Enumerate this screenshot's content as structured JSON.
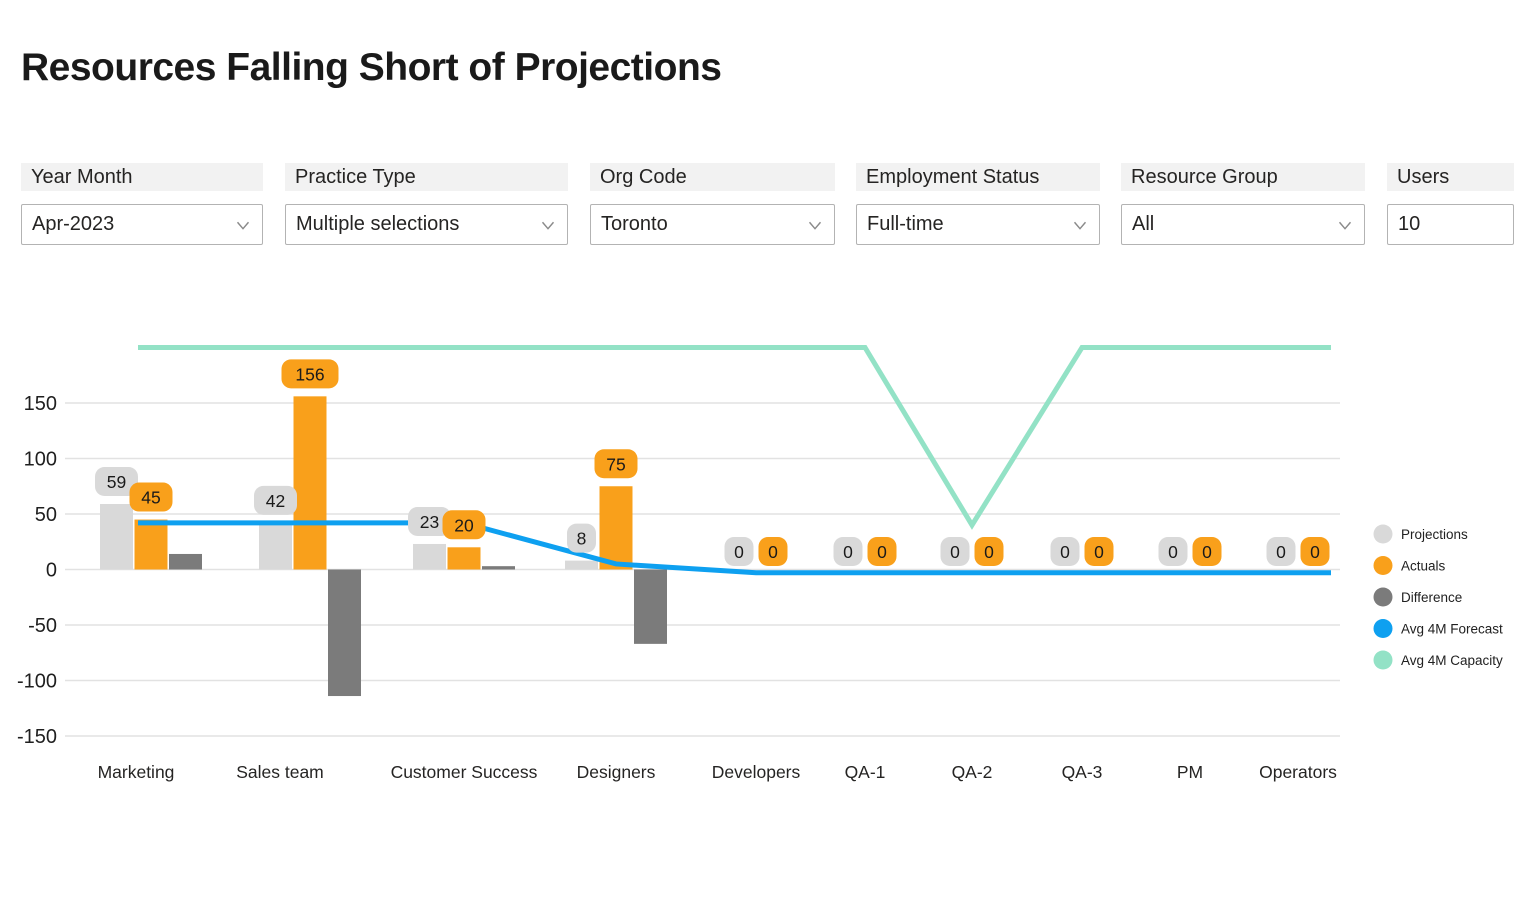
{
  "page": {
    "title": "Resources Falling Short of Projections"
  },
  "filters": [
    {
      "label": "Year Month",
      "value": "Apr-2023",
      "control": "dropdown"
    },
    {
      "label": "Practice Type",
      "value": "Multiple selections",
      "control": "dropdown"
    },
    {
      "label": "Org Code",
      "value": "Toronto",
      "control": "dropdown"
    },
    {
      "label": "Employment Status",
      "value": "Full-time",
      "control": "dropdown"
    },
    {
      "label": "Resource Group",
      "value": "All",
      "control": "dropdown"
    },
    {
      "label": "Users",
      "value": "10",
      "control": "input"
    }
  ],
  "chart_data": {
    "type": "combo",
    "title": "",
    "categories": [
      "Marketing",
      "Sales team",
      "Customer Success",
      "Designers",
      "Developers",
      "QA-1",
      "QA-2",
      "QA-3",
      "PM",
      "Operators"
    ],
    "series": [
      {
        "name": "Projections",
        "type": "bar",
        "color": "#D9D9D9",
        "values": [
          59,
          42,
          23,
          8,
          0,
          0,
          0,
          0,
          0,
          0
        ]
      },
      {
        "name": "Actuals",
        "type": "bar",
        "color": "#F9A01B",
        "values": [
          45,
          156,
          20,
          75,
          0,
          0,
          0,
          0,
          0,
          0
        ]
      },
      {
        "name": "Difference",
        "type": "bar",
        "color": "#7B7B7B",
        "values": [
          14,
          -114,
          3,
          -67,
          0,
          0,
          0,
          0,
          0,
          0
        ]
      },
      {
        "name": "Avg 4M Forecast",
        "type": "line",
        "color": "#0EA0F0",
        "values": [
          42,
          42,
          42,
          5,
          0,
          0,
          0,
          0,
          0,
          0
        ]
      },
      {
        "name": "Avg 4M Capacity",
        "type": "line",
        "color": "#93E2C6",
        "values": [
          200,
          200,
          200,
          200,
          200,
          200,
          40,
          200,
          200,
          200
        ]
      }
    ],
    "data_label_series": [
      "Projections",
      "Actuals"
    ],
    "yticks": [
      150,
      100,
      50,
      0,
      -50,
      -100,
      -150
    ],
    "ylim": [
      -165,
      215
    ],
    "grid": true,
    "legend_position": "right",
    "colors": {
      "grid": "#E2E2E2",
      "axis_text": "#252423",
      "pill_text": "#1a1a1a"
    }
  }
}
